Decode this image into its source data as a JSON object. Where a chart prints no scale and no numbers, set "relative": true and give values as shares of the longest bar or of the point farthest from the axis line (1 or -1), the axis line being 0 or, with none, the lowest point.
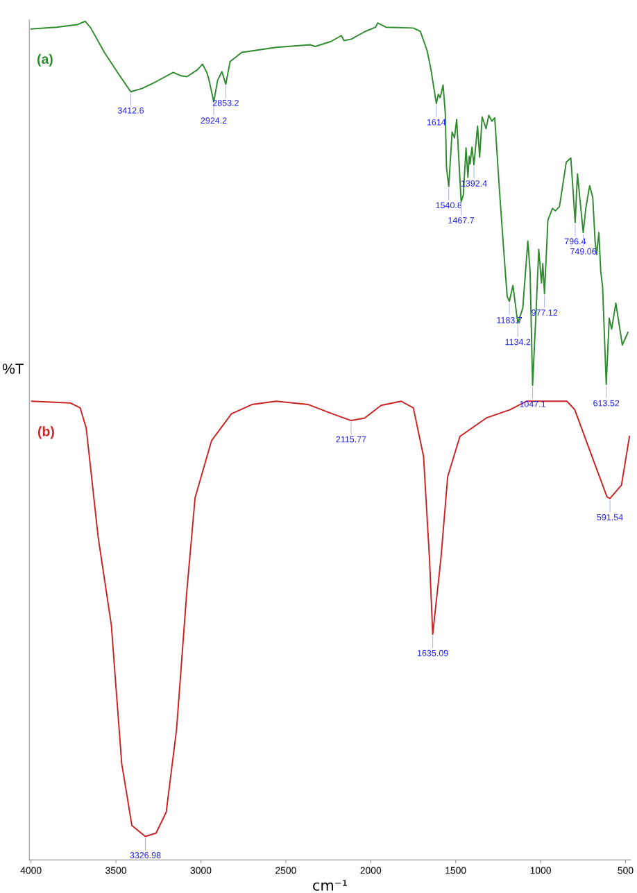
{
  "chart_data": {
    "type": "line",
    "relative": true,
    "xlabel": "cm⁻¹",
    "ylabel": "%T",
    "xlim": [
      4010,
      470
    ],
    "xticks": [
      4000,
      3500,
      3000,
      2500,
      2000,
      1500,
      1000,
      500
    ],
    "grid": false,
    "legend": false,
    "marker": "none",
    "line_style": "solid",
    "series": [
      {
        "name": "(a)",
        "color": "#2e8b2e",
        "x": [
          4000,
          3850,
          3729,
          3681,
          3648,
          3568,
          3487,
          3412.6,
          3345,
          3264,
          3163,
          3115,
          3082,
          3022,
          2990,
          2965,
          2953,
          2924.2,
          2901,
          2876,
          2853.2,
          2828,
          2759,
          2557,
          2355,
          2327,
          2234,
          2173,
          2157,
          2112,
          2032,
          1971,
          1959,
          1910,
          1749,
          1708,
          1668,
          1645,
          1614,
          1602,
          1591,
          1574,
          1561,
          1554,
          1540.8,
          1521,
          1507,
          1494,
          1467.7,
          1455,
          1439,
          1428,
          1420,
          1415,
          1404,
          1392.4,
          1371,
          1359,
          1344,
          1321,
          1305,
          1287,
          1270,
          1243,
          1220,
          1197,
          1183.7,
          1163,
          1134.2,
          1105,
          1075,
          1062,
          1047.1,
          1024,
          1011,
          995,
          987,
          977.12,
          957,
          930,
          913,
          889,
          849,
          822,
          796.4,
          783,
          749.06,
          734,
          711,
          693,
          679,
          670,
          657,
          646,
          635,
          613.52,
          596,
          582,
          557,
          519,
          486
        ],
        "values": [
          0.991,
          0.993,
          0.996,
          1.0,
          0.992,
          0.963,
          0.938,
          0.916,
          0.92,
          0.928,
          0.939,
          0.935,
          0.934,
          0.942,
          0.949,
          0.939,
          0.931,
          0.904,
          0.93,
          0.94,
          0.925,
          0.952,
          0.963,
          0.969,
          0.972,
          0.97,
          0.976,
          0.983,
          0.977,
          0.979,
          0.988,
          0.993,
          0.998,
          0.993,
          0.992,
          0.988,
          0.965,
          0.942,
          0.902,
          0.913,
          0.909,
          0.924,
          0.89,
          0.826,
          0.803,
          0.868,
          0.861,
          0.883,
          0.785,
          0.793,
          0.849,
          0.814,
          0.839,
          0.83,
          0.85,
          0.829,
          0.875,
          0.838,
          0.886,
          0.872,
          0.888,
          0.881,
          0.885,
          0.801,
          0.735,
          0.672,
          0.666,
          0.685,
          0.64,
          0.658,
          0.738,
          0.702,
          0.566,
          0.666,
          0.728,
          0.688,
          0.711,
          0.675,
          0.763,
          0.777,
          0.774,
          0.779,
          0.832,
          0.837,
          0.76,
          0.818,
          0.748,
          0.777,
          0.804,
          0.79,
          0.737,
          0.722,
          0.748,
          0.702,
          0.683,
          0.567,
          0.646,
          0.633,
          0.664,
          0.614,
          0.629
        ]
      },
      {
        "name": "(b)",
        "color": "#cc2222",
        "x": [
          3996,
          3770,
          3710,
          3675,
          3604,
          3527,
          3466,
          3406,
          3326.98,
          3264,
          3204,
          3143,
          3082,
          3034,
          2937,
          2820,
          2700,
          2557,
          2367,
          2226,
          2115.77,
          2036,
          1939,
          1821,
          1749,
          1689,
          1654,
          1635.09,
          1587,
          1547,
          1475,
          1320,
          1179,
          1083,
          845,
          799,
          679,
          609,
          591.54,
          524,
          477
        ],
        "values": [
          0.547,
          0.545,
          0.539,
          0.515,
          0.384,
          0.28,
          0.115,
          0.041,
          0.028,
          0.032,
          0.057,
          0.156,
          0.322,
          0.432,
          0.5,
          0.532,
          0.543,
          0.547,
          0.543,
          0.532,
          0.524,
          0.527,
          0.542,
          0.547,
          0.539,
          0.481,
          0.359,
          0.269,
          0.359,
          0.457,
          0.505,
          0.527,
          0.537,
          0.547,
          0.547,
          0.537,
          0.471,
          0.433,
          0.431,
          0.447,
          0.505
        ]
      }
    ],
    "annotations": [
      {
        "text": "3412.6",
        "x": 3412.6,
        "y": 0.916
      },
      {
        "text": "2924.2",
        "x": 2924.2,
        "y": 0.904
      },
      {
        "text": "2853.2",
        "x": 2853.2,
        "y": 0.925
      },
      {
        "text": "1614",
        "x": 1614,
        "y": 0.902
      },
      {
        "text": "1540.8",
        "x": 1540.8,
        "y": 0.803
      },
      {
        "text": "1467.7",
        "x": 1467.7,
        "y": 0.785
      },
      {
        "text": "1392.4",
        "x": 1392.4,
        "y": 0.829
      },
      {
        "text": "1183.7",
        "x": 1183.7,
        "y": 0.666
      },
      {
        "text": "1134.2",
        "x": 1134.2,
        "y": 0.64
      },
      {
        "text": "1047.1",
        "x": 1047.1,
        "y": 0.566
      },
      {
        "text": "977.12",
        "x": 977.12,
        "y": 0.675
      },
      {
        "text": "796.4",
        "x": 796.4,
        "y": 0.76
      },
      {
        "text": "749.06",
        "x": 749.06,
        "y": 0.748
      },
      {
        "text": "613.52",
        "x": 613.52,
        "y": 0.567
      },
      {
        "text": "3326.98",
        "x": 3326.98,
        "y": 0.028
      },
      {
        "text": "2115.77",
        "x": 2115.77,
        "y": 0.524
      },
      {
        "text": "1635.09",
        "x": 1635.09,
        "y": 0.269
      },
      {
        "text": "591.54",
        "x": 591.54,
        "y": 0.431
      }
    ]
  }
}
